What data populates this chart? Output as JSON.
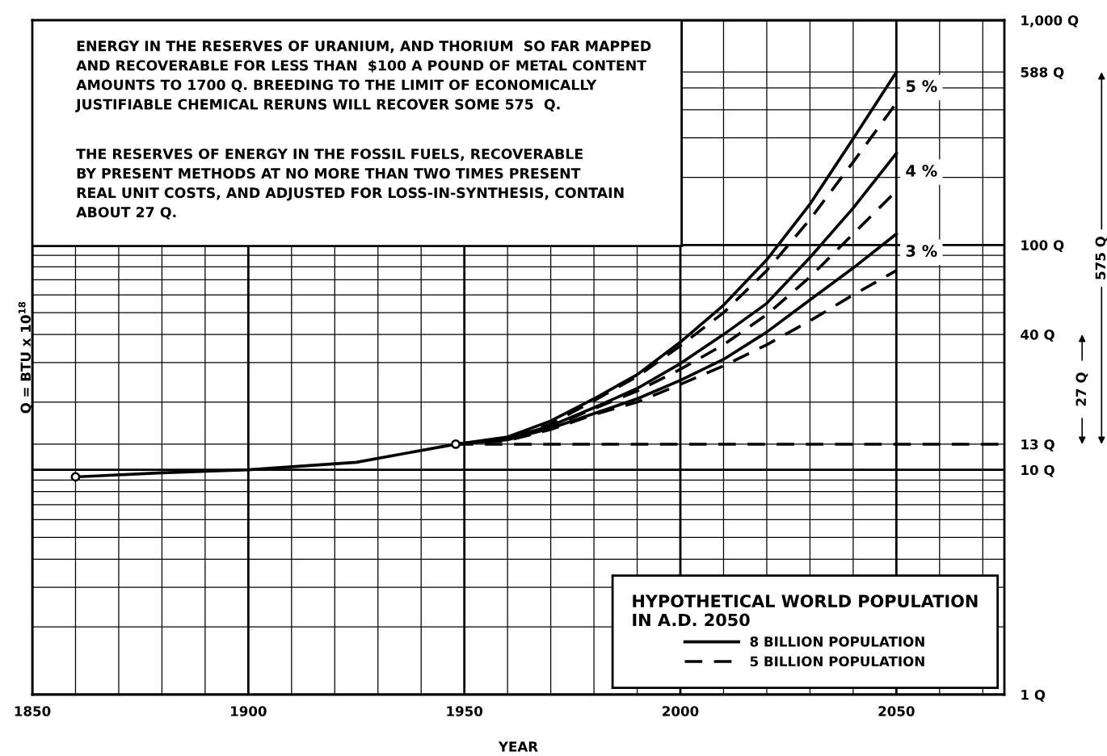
{
  "chart_data": {
    "type": "line",
    "xlabel": "YEAR",
    "ylabel": "Q = BTU x 10$^{18}$",
    "legend_title": "HYPOTHETICAL WORLD POPULATION\nIN A.D. 2050",
    "legend": "bottom right",
    "grid": true,
    "log": "y",
    "xlim": [
      1850,
      2075
    ],
    "xticks": [
      1850,
      {
        "value": 1860,
        "label": null
      },
      {
        "value": 1870,
        "label": null
      },
      {
        "value": 1880,
        "label": null
      },
      {
        "value": 1890,
        "label": null
      },
      1900,
      {
        "value": 1910,
        "label": null
      },
      {
        "value": 1920,
        "label": null
      },
      {
        "value": 1930,
        "label": null
      },
      {
        "value": 1940,
        "label": null
      },
      1950,
      {
        "value": 1960,
        "label": null
      },
      {
        "value": 1970,
        "label": null
      },
      {
        "value": 1980,
        "label": null
      },
      {
        "value": 1990,
        "label": null
      },
      2000,
      {
        "value": 2010,
        "label": null
      },
      {
        "value": 2020,
        "label": null
      },
      {
        "value": 2030,
        "label": null
      },
      {
        "value": 2040,
        "label": null
      },
      2050,
      {
        "value": 2060,
        "label": null
      },
      {
        "value": 2070,
        "label": null
      }
    ],
    "ylim": [
      1,
      1000
    ],
    "yticks": [
      {
        "value": 1,
        "label": "1 Q"
      },
      {
        "value": 2,
        "label": null
      },
      {
        "value": 3,
        "label": null
      },
      {
        "value": 4,
        "label": null
      },
      {
        "value": 5,
        "label": null
      },
      {
        "value": 6,
        "label": null
      },
      {
        "value": 7,
        "label": null
      },
      {
        "value": 8,
        "label": null
      },
      {
        "value": 9,
        "label": null
      },
      {
        "value": 10,
        "label": "10 Q"
      },
      {
        "value": 13,
        "label": "13 Q"
      },
      {
        "value": 20,
        "label": null
      },
      {
        "value": 30,
        "label": null
      },
      {
        "value": 40,
        "label": "40 Q"
      },
      {
        "value": 50,
        "label": null
      },
      {
        "value": 60,
        "label": null
      },
      {
        "value": 70,
        "label": null
      },
      {
        "value": 80,
        "label": null
      },
      {
        "value": 90,
        "label": null
      },
      {
        "value": 100,
        "label": "100 Q"
      },
      {
        "value": 200,
        "label": null
      },
      {
        "value": 300,
        "label": null
      },
      {
        "value": 400,
        "label": null
      },
      {
        "value": 500,
        "label": null
      },
      {
        "value": 588,
        "label": "588 Q"
      },
      {
        "value": 1000,
        "label": "1,000 Q"
      }
    ],
    "series": [
      {
        "color": "#000000",
        "line_style": "solid",
        "x": [
          1860,
          1880,
          1900,
          1925,
          1948
        ],
        "values": [
          9.3,
          9.7,
          10,
          10.8,
          13
        ]
      },
      {
        "type": "scatter",
        "color": "#000000",
        "marker": "circle",
        "x": [
          1860,
          1948
        ],
        "values": [
          9.3,
          13
        ]
      },
      {
        "name": "8 BILLION POPULATION",
        "color": "#000000",
        "line_style": "solid",
        "x": [
          1948,
          1960,
          1970,
          1980,
          1990,
          2000,
          2010,
          2020,
          2030,
          2040,
          2050
        ],
        "values": [
          13,
          14,
          16.5,
          20.7,
          26.5,
          37,
          54,
          86,
          152,
          297,
          588
        ]
      },
      {
        "name": "5 BILLION POPULATION",
        "color": "#000000",
        "line_style": "dashed",
        "x": [
          1948,
          1960,
          1970,
          1980,
          1990,
          2000,
          2010,
          2020,
          2030,
          2040,
          2050
        ],
        "values": [
          13,
          13.8,
          16,
          20.3,
          26,
          35.6,
          50,
          77,
          130,
          234,
          428
        ]
      },
      {
        "color": "#000000",
        "line_style": "solid",
        "x": [
          1948,
          1960,
          1970,
          1980,
          1990,
          2000,
          2010,
          2020,
          2030,
          2040,
          2050
        ],
        "values": [
          13,
          13.8,
          15.7,
          18.9,
          23,
          29.7,
          40,
          55,
          88,
          146,
          256
        ]
      },
      {
        "color": "#000000",
        "line_style": "dashed",
        "x": [
          1948,
          1960,
          1970,
          1980,
          1990,
          2000,
          2010,
          2020,
          2030,
          2040,
          2050
        ],
        "values": [
          13,
          13.7,
          15.5,
          18.7,
          22.4,
          28,
          36,
          49,
          72,
          112,
          174
        ]
      },
      {
        "color": "#000000",
        "line_style": "solid",
        "x": [
          1948,
          1960,
          1970,
          1980,
          1990,
          2000,
          2010,
          2020,
          2030,
          2040,
          2050
        ],
        "values": [
          13,
          13.6,
          15.3,
          17.8,
          20.7,
          25,
          31,
          41,
          57,
          79,
          112
        ]
      },
      {
        "color": "#000000",
        "line_style": "dashed",
        "x": [
          1948,
          1960,
          1970,
          1980,
          1990,
          2000,
          2010,
          2020,
          2030,
          2040,
          2050
        ],
        "values": [
          13,
          13.5,
          15.1,
          17.6,
          20,
          24,
          29,
          36,
          46,
          60,
          77
        ]
      },
      {
        "color": "#000000",
        "line_style": "dashed",
        "x": [
          1948,
          2075
        ],
        "values": [
          13,
          13
        ]
      }
    ],
    "annotations": [
      "ENERGY IN THE RESERVES OF URANIUM, AND THORIUM  SO FAR MAPPED\nAND RECOVERABLE FOR LESS THAN  $100 A POUND OF METAL CONTENT\nAMOUNTS TO 1700 Q. BREEDING TO THE LIMIT OF ECONOMICALLY\nJUSTIFIABLE CHEMICAL RERUNS WILL RECOVER SOME 575  Q.",
      "THE RESERVES OF ENERGY IN THE FOSSIL FUELS, RECOVERABLE\nBY PRESENT METHODS AT NO MORE THAN TWO TIMES PRESENT\nREAL UNIT COSTS, AND ADJUSTED FOR LOSS-IN-SYNTHESIS, CONTAIN\nABOUT 27 Q.",
      "5 %",
      "4 %",
      "3 %",
      "575 Q",
      "27 Q"
    ]
  }
}
